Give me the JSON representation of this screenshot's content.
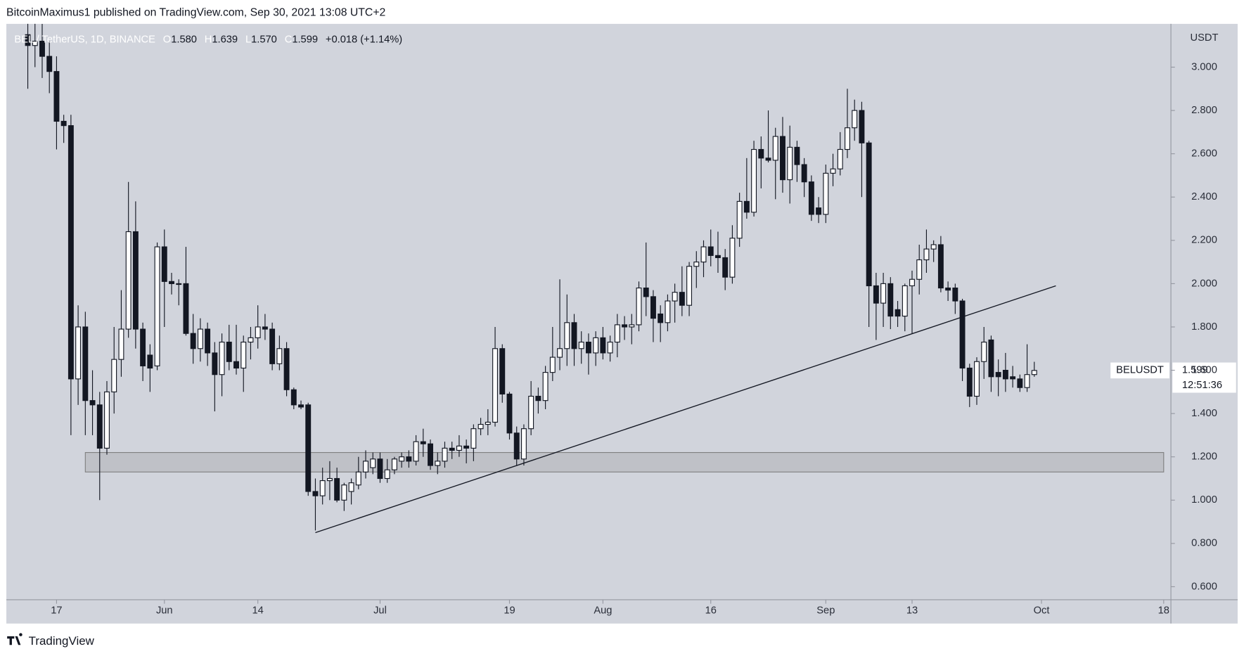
{
  "header": {
    "text": "BitcoinMaximus1 published on TradingView.com, Sep 30, 2021 13:08 UTC+2"
  },
  "footer": {
    "brand": "TradingView"
  },
  "chart_data": {
    "type": "candlestick",
    "legend": {
      "symbol": "BEL / TetherUS, 1D, BINANCE",
      "items": [
        {
          "key": "O",
          "value": "1.580"
        },
        {
          "key": "H",
          "value": "1.639"
        },
        {
          "key": "L",
          "value": "1.570"
        },
        {
          "key": "C",
          "value": "1.599"
        }
      ],
      "change": "+0.018 (+1.14%)"
    },
    "y_axis_label": "USDT",
    "price_tag": {
      "name": "BELUSDT",
      "price": "1.599",
      "countdown": "12:51:36"
    },
    "categories": [
      "May 13",
      "May 14",
      "May 15",
      "May 16",
      "May 17",
      "May 18",
      "May 19",
      "May 20",
      "May 21",
      "May 22",
      "May 23",
      "May 24",
      "May 25",
      "May 26",
      "May 27",
      "May 28",
      "May 29",
      "May 30",
      "May 31",
      "Jun 1",
      "Jun 2",
      "Jun 3",
      "Jun 4",
      "Jun 5",
      "Jun 6",
      "Jun 7",
      "Jun 8",
      "Jun 9",
      "Jun 10",
      "Jun 11",
      "Jun 12",
      "Jun 13",
      "Jun 14",
      "Jun 15",
      "Jun 16",
      "Jun 17",
      "Jun 18",
      "Jun 19",
      "Jun 20",
      "Jun 21",
      "Jun 22",
      "Jun 23",
      "Jun 24",
      "Jun 25",
      "Jun 26",
      "Jun 27",
      "Jun 28",
      "Jun 29",
      "Jun 30",
      "Jul 1",
      "Jul 2",
      "Jul 3",
      "Jul 4",
      "Jul 5",
      "Jul 6",
      "Jul 7",
      "Jul 8",
      "Jul 9",
      "Jul 10",
      "Jul 11",
      "Jul 12",
      "Jul 13",
      "Jul 14",
      "Jul 15",
      "Jul 16",
      "Jul 17",
      "Jul 18",
      "Jul 19",
      "Jul 20",
      "Jul 21",
      "Jul 22",
      "Jul 23",
      "Jul 24",
      "Jul 25",
      "Jul 26",
      "Jul 27",
      "Jul 28",
      "Jul 29",
      "Jul 30",
      "Jul 31",
      "Aug 1",
      "Aug 2",
      "Aug 3",
      "Aug 4",
      "Aug 5",
      "Aug 6",
      "Aug 7",
      "Aug 8",
      "Aug 9",
      "Aug 10",
      "Aug 11",
      "Aug 12",
      "Aug 13",
      "Aug 14",
      "Aug 15",
      "Aug 16",
      "Aug 17",
      "Aug 18",
      "Aug 19",
      "Aug 20",
      "Aug 21",
      "Aug 22",
      "Aug 23",
      "Aug 24",
      "Aug 25",
      "Aug 26",
      "Aug 27",
      "Aug 28",
      "Aug 29",
      "Aug 30",
      "Aug 31",
      "Sep 1",
      "Sep 2",
      "Sep 3",
      "Sep 4",
      "Sep 5",
      "Sep 6",
      "Sep 7",
      "Sep 8",
      "Sep 9",
      "Sep 10",
      "Sep 11",
      "Sep 12",
      "Sep 13",
      "Sep 14",
      "Sep 15",
      "Sep 16",
      "Sep 17",
      "Sep 18",
      "Sep 19",
      "Sep 20",
      "Sep 21",
      "Sep 22",
      "Sep 23",
      "Sep 24",
      "Sep 25",
      "Sep 26",
      "Sep 27",
      "Sep 28",
      "Sep 29",
      "Sep 30",
      "Oct 1",
      "Oct 2",
      "Oct 3",
      "Oct 4",
      "Oct 5",
      "Oct 6",
      "Oct 7",
      "Oct 8",
      "Oct 9",
      "Oct 10",
      "Oct 11",
      "Oct 12",
      "Oct 13",
      "Oct 14",
      "Oct 15",
      "Oct 16",
      "Oct 17",
      "Oct 18",
      "Oct 19"
    ],
    "series": [
      {
        "name": "BELUSDT",
        "up_color": "#ffffff",
        "down_color": "#131722",
        "outline": "#131722",
        "open": [
          3.15,
          3.1,
          3.12,
          3.05,
          2.98,
          2.75,
          2.73,
          1.56,
          1.8,
          1.46,
          1.44,
          1.24,
          1.5,
          1.65,
          1.79,
          2.24,
          1.79,
          1.67,
          1.62,
          2.17,
          2.01,
          2.0,
          2.0,
          1.77,
          1.7,
          1.79,
          1.68,
          1.58,
          1.73,
          1.64,
          1.61,
          1.73,
          1.75,
          1.8,
          1.79,
          1.63,
          1.7,
          1.51,
          1.44,
          1.44,
          1.04,
          1.02,
          1.09,
          1.1,
          1.0,
          1.04,
          1.07,
          1.13,
          1.15,
          1.19,
          1.1,
          1.14,
          1.18,
          1.2,
          1.18,
          1.27,
          1.26,
          1.16,
          1.18,
          1.24,
          1.23,
          1.25,
          1.24,
          1.33,
          1.35,
          1.36,
          1.7,
          1.49,
          1.31,
          1.19,
          1.33,
          1.48,
          1.46,
          1.59,
          1.66,
          1.7,
          1.82,
          1.7,
          1.73,
          1.68,
          1.75,
          1.68,
          1.73,
          1.81,
          1.8,
          1.81,
          1.98,
          1.94,
          1.86,
          1.82,
          1.92,
          1.96,
          1.9,
          2.08,
          2.1,
          2.17,
          2.13,
          2.12,
          2.03,
          2.21,
          2.38,
          2.33,
          2.62,
          2.58,
          2.57,
          2.68,
          2.48,
          2.63,
          2.55,
          2.47,
          2.35,
          2.32,
          2.51,
          2.53,
          2.62,
          2.72,
          2.8,
          2.65,
          1.99,
          1.91,
          2.0,
          1.88,
          1.85,
          1.99,
          2.02,
          2.11,
          2.16,
          2.18,
          1.98,
          1.98,
          1.92,
          1.61,
          1.48,
          1.64,
          1.74,
          1.59,
          1.6,
          1.57,
          1.56,
          1.52,
          1.58,
          null,
          null,
          null,
          null,
          null,
          null,
          null,
          null,
          null,
          null,
          null,
          null,
          null,
          null,
          null,
          null,
          null,
          null,
          null
        ],
        "high": [
          3.3,
          3.25,
          3.2,
          3.12,
          3.05,
          2.78,
          2.78,
          1.9,
          1.87,
          1.6,
          1.5,
          1.55,
          1.8,
          1.97,
          2.47,
          2.38,
          1.82,
          1.72,
          2.19,
          2.25,
          2.05,
          2.02,
          2.17,
          1.86,
          1.84,
          1.82,
          1.73,
          1.77,
          1.81,
          1.81,
          1.76,
          1.8,
          1.9,
          1.86,
          1.82,
          1.76,
          1.73,
          1.52,
          1.46,
          1.45,
          1.1,
          1.15,
          1.18,
          1.15,
          1.08,
          1.1,
          1.2,
          1.23,
          1.22,
          1.22,
          1.19,
          1.2,
          1.22,
          1.23,
          1.3,
          1.33,
          1.28,
          1.22,
          1.27,
          1.27,
          1.3,
          1.28,
          1.35,
          1.38,
          1.42,
          1.8,
          1.72,
          1.5,
          1.34,
          1.35,
          1.55,
          1.52,
          1.62,
          1.8,
          2.02,
          1.95,
          1.86,
          1.78,
          1.77,
          1.78,
          1.8,
          1.76,
          1.86,
          1.85,
          1.86,
          2.01,
          2.19,
          1.97,
          1.9,
          1.95,
          2.0,
          2.08,
          2.1,
          2.15,
          2.2,
          2.25,
          2.24,
          2.16,
          2.27,
          2.42,
          2.58,
          2.66,
          2.68,
          2.8,
          2.72,
          2.77,
          2.73,
          2.66,
          2.58,
          2.5,
          2.4,
          2.55,
          2.6,
          2.7,
          2.9,
          2.85,
          2.84,
          2.66,
          2.05,
          2.05,
          2.03,
          1.92,
          2.0,
          2.06,
          2.18,
          2.25,
          2.2,
          2.22,
          2.01,
          2.0,
          1.93,
          1.63,
          1.66,
          1.8,
          1.76,
          1.65,
          1.68,
          1.62,
          1.58,
          1.72,
          1.639,
          null,
          null,
          null,
          null,
          null,
          null,
          null,
          null,
          null,
          null,
          null,
          null,
          null,
          null,
          null,
          null,
          null,
          null,
          null
        ],
        "low": [
          2.9,
          3.0,
          2.95,
          2.88,
          2.62,
          2.65,
          1.3,
          1.44,
          1.3,
          1.3,
          1.0,
          1.21,
          1.4,
          1.57,
          1.75,
          1.7,
          1.55,
          1.5,
          1.6,
          1.8,
          1.95,
          1.9,
          1.76,
          1.63,
          1.64,
          1.62,
          1.41,
          1.48,
          1.6,
          1.58,
          1.5,
          1.65,
          1.7,
          1.74,
          1.6,
          1.6,
          1.48,
          1.42,
          1.42,
          1.02,
          0.86,
          0.98,
          1.0,
          0.99,
          0.95,
          0.98,
          1.05,
          1.1,
          1.12,
          1.08,
          1.08,
          1.12,
          1.15,
          1.15,
          1.16,
          1.2,
          1.14,
          1.12,
          1.15,
          1.19,
          1.2,
          1.17,
          1.18,
          1.3,
          1.3,
          1.34,
          1.45,
          1.28,
          1.16,
          1.16,
          1.3,
          1.4,
          1.42,
          1.55,
          1.6,
          1.62,
          1.62,
          1.63,
          1.58,
          1.62,
          1.65,
          1.64,
          1.66,
          1.74,
          1.72,
          1.78,
          1.85,
          1.73,
          1.73,
          1.78,
          1.82,
          1.85,
          1.85,
          1.98,
          2.03,
          2.08,
          2.05,
          1.97,
          2.0,
          2.17,
          2.3,
          2.31,
          2.44,
          2.56,
          2.39,
          2.42,
          2.37,
          2.47,
          2.4,
          2.29,
          2.28,
          2.28,
          2.45,
          2.5,
          2.58,
          2.66,
          2.4,
          1.8,
          1.74,
          1.8,
          1.79,
          1.8,
          1.78,
          1.77,
          1.95,
          2.05,
          2.1,
          1.96,
          1.92,
          1.86,
          1.55,
          1.43,
          1.44,
          1.56,
          1.5,
          1.48,
          1.5,
          1.52,
          1.5,
          1.5,
          1.57,
          null,
          null,
          null,
          null,
          null,
          null,
          null,
          null,
          null,
          null,
          null,
          null,
          null,
          null,
          null,
          null,
          null,
          null,
          null
        ],
        "close": [
          3.1,
          3.12,
          3.05,
          2.98,
          2.75,
          2.73,
          1.56,
          1.8,
          1.46,
          1.44,
          1.24,
          1.5,
          1.65,
          1.79,
          2.24,
          1.79,
          1.62,
          1.61,
          2.17,
          2.01,
          2.0,
          2.0,
          1.77,
          1.7,
          1.79,
          1.68,
          1.58,
          1.73,
          1.64,
          1.61,
          1.73,
          1.75,
          1.8,
          1.79,
          1.63,
          1.7,
          1.51,
          1.44,
          1.43,
          1.04,
          1.02,
          1.09,
          1.1,
          1.0,
          1.07,
          1.08,
          1.13,
          1.18,
          1.19,
          1.1,
          1.14,
          1.19,
          1.2,
          1.18,
          1.27,
          1.26,
          1.16,
          1.18,
          1.24,
          1.23,
          1.25,
          1.24,
          1.33,
          1.35,
          1.36,
          1.7,
          1.49,
          1.31,
          1.19,
          1.33,
          1.48,
          1.46,
          1.59,
          1.66,
          1.7,
          1.82,
          1.7,
          1.73,
          1.68,
          1.75,
          1.68,
          1.73,
          1.81,
          1.8,
          1.81,
          1.98,
          1.94,
          1.84,
          1.82,
          1.92,
          1.96,
          1.9,
          2.08,
          2.1,
          2.17,
          2.13,
          2.12,
          2.03,
          2.21,
          2.38,
          2.33,
          2.62,
          2.58,
          2.57,
          2.68,
          2.48,
          2.63,
          2.55,
          2.47,
          2.32,
          2.32,
          2.51,
          2.53,
          2.62,
          2.72,
          2.8,
          2.65,
          1.99,
          1.91,
          2.0,
          1.85,
          1.85,
          1.99,
          2.02,
          2.11,
          2.16,
          2.18,
          1.98,
          1.97,
          1.92,
          1.61,
          1.48,
          1.64,
          1.73,
          1.57,
          1.57,
          1.56,
          1.56,
          1.52,
          1.58,
          1.599,
          null,
          null,
          null,
          null,
          null,
          null,
          null,
          null,
          null,
          null,
          null,
          null,
          null,
          null,
          null,
          null,
          null,
          null,
          null
        ]
      }
    ],
    "ylim": [
      0.54,
      3.2
    ],
    "yticks": [
      {
        "value": 0.6,
        "label": "0.600"
      },
      {
        "value": 0.8,
        "label": "0.800"
      },
      {
        "value": 1.0,
        "label": "1.000"
      },
      {
        "value": 1.2,
        "label": "1.200"
      },
      {
        "value": 1.4,
        "label": "1.400"
      },
      {
        "value": 1.6,
        "label": "1.600"
      },
      {
        "value": 1.8,
        "label": "1.800"
      },
      {
        "value": 2.0,
        "label": "2.000"
      },
      {
        "value": 2.2,
        "label": "2.200"
      },
      {
        "value": 2.4,
        "label": "2.400"
      },
      {
        "value": 2.6,
        "label": "2.600"
      },
      {
        "value": 2.8,
        "label": "2.800"
      },
      {
        "value": 3.0,
        "label": "3.000"
      }
    ],
    "xticks": [
      {
        "value": "May 17",
        "label": "17"
      },
      {
        "value": "Jun 1",
        "label": "Jun"
      },
      {
        "value": "Jun 14",
        "label": "14"
      },
      {
        "value": "Jul 1",
        "label": "Jul"
      },
      {
        "value": "Jul 19",
        "label": "19"
      },
      {
        "value": "Aug 1",
        "label": "Aug"
      },
      {
        "value": "Aug 16",
        "label": "16"
      },
      {
        "value": "Sep 1",
        "label": "Sep"
      },
      {
        "value": "Sep 13",
        "label": "13"
      },
      {
        "value": "Oct 1",
        "label": "Oct"
      },
      {
        "value": "Oct 18",
        "label": "18"
      }
    ],
    "grid": false,
    "background": "#d1d4dc",
    "annotations": {
      "trendline": {
        "x": [
          "Jun 22",
          "Oct 3"
        ],
        "y": [
          0.85,
          1.99
        ],
        "color": "#131722"
      },
      "support_zone": {
        "x": [
          "May 21",
          "Oct 18"
        ],
        "y": [
          1.13,
          1.22
        ],
        "color": "#808080"
      }
    }
  }
}
